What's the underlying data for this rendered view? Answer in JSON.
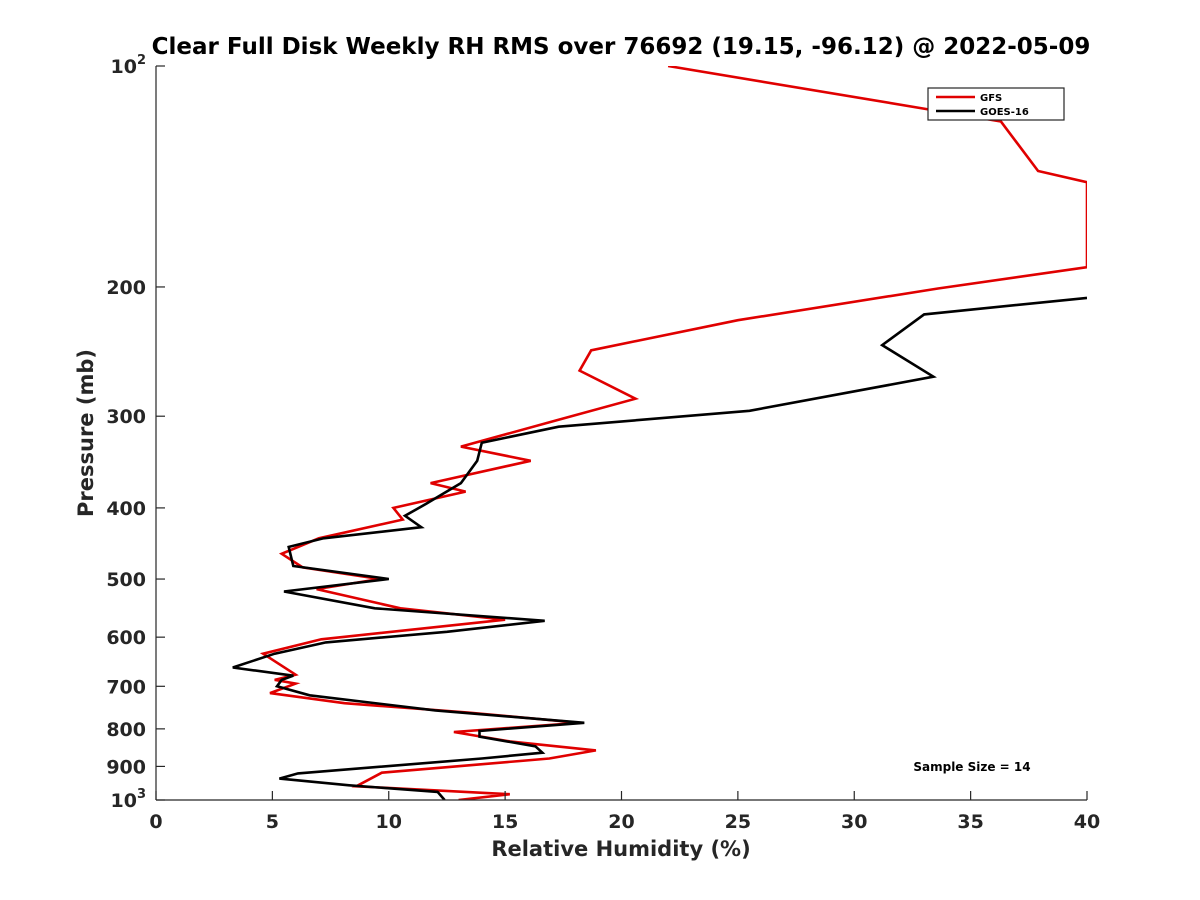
{
  "chart_data": {
    "type": "line",
    "title": "Clear Full Disk Weekly RH RMS over 76692 (19.15, -96.12) @ 2022-05-09",
    "xlabel": "Relative Humidity (%)",
    "ylabel": "Pressure (mb)",
    "xlim": [
      0,
      40
    ],
    "ylim": [
      100,
      1000
    ],
    "y_scale": "log",
    "y_reversed": true,
    "grid": false,
    "x_ticks": [
      "0",
      "5",
      "10",
      "15",
      "20",
      "25",
      "30",
      "35",
      "40"
    ],
    "y_ticks": [
      {
        "value": 100,
        "base": "10",
        "exp": "2"
      },
      {
        "value": 200,
        "base": "200",
        "exp": ""
      },
      {
        "value": 300,
        "base": "300",
        "exp": ""
      },
      {
        "value": 400,
        "base": "400",
        "exp": ""
      },
      {
        "value": 500,
        "base": "500",
        "exp": ""
      },
      {
        "value": 600,
        "base": "600",
        "exp": ""
      },
      {
        "value": 700,
        "base": "700",
        "exp": ""
      },
      {
        "value": 800,
        "base": "800",
        "exp": ""
      },
      {
        "value": 900,
        "base": "900",
        "exp": ""
      },
      {
        "value": 1000,
        "base": "10",
        "exp": "3"
      }
    ],
    "legend_position": "top-right",
    "annotation": "Sample Size = 14",
    "series": [
      {
        "name": "GFS",
        "color": "#e00000",
        "points": [
          [
            22.0,
            100
          ],
          [
            33.5,
            115
          ],
          [
            36.3,
            119
          ],
          [
            37.9,
            139
          ],
          [
            40.0,
            144
          ],
          [
            40.0,
            188
          ],
          [
            33.6,
            201
          ],
          [
            25.0,
            222
          ],
          [
            18.7,
            244
          ],
          [
            18.2,
            260
          ],
          [
            20.6,
            284
          ],
          [
            17.2,
            304
          ],
          [
            13.1,
            330
          ],
          [
            16.1,
            345
          ],
          [
            11.8,
            370
          ],
          [
            13.3,
            380
          ],
          [
            10.2,
            400
          ],
          [
            10.6,
            415
          ],
          [
            7.0,
            440
          ],
          [
            5.4,
            462
          ],
          [
            6.3,
            482
          ],
          [
            9.6,
            500
          ],
          [
            6.9,
            516
          ],
          [
            10.5,
            548
          ],
          [
            15.0,
            568
          ],
          [
            7.1,
            604
          ],
          [
            4.6,
            632
          ],
          [
            6.0,
            675
          ],
          [
            5.1,
            686
          ],
          [
            6.0,
            694
          ],
          [
            4.9,
            715
          ],
          [
            8.1,
            738
          ],
          [
            13.4,
            760
          ],
          [
            18.2,
            785
          ],
          [
            12.8,
            808
          ],
          [
            15.2,
            832
          ],
          [
            18.9,
            856
          ],
          [
            16.9,
            878
          ],
          [
            9.7,
            918
          ],
          [
            8.6,
            958
          ],
          [
            15.2,
            982
          ],
          [
            13.0,
            1000
          ]
        ]
      },
      {
        "name": "GOES-16",
        "color": "#000000",
        "points": [
          [
            40.0,
            207
          ],
          [
            33.0,
            218
          ],
          [
            31.2,
            240
          ],
          [
            33.4,
            265
          ],
          [
            25.5,
            295
          ],
          [
            17.3,
            310
          ],
          [
            14.0,
            326
          ],
          [
            13.8,
            345
          ],
          [
            13.1,
            370
          ],
          [
            11.6,
            395
          ],
          [
            10.7,
            410
          ],
          [
            11.4,
            425
          ],
          [
            7.2,
            440
          ],
          [
            5.7,
            452
          ],
          [
            5.9,
            480
          ],
          [
            10.0,
            500
          ],
          [
            5.5,
            520
          ],
          [
            9.4,
            548
          ],
          [
            16.7,
            570
          ],
          [
            12.5,
            590
          ],
          [
            7.3,
            610
          ],
          [
            5.1,
            632
          ],
          [
            3.3,
            660
          ],
          [
            5.9,
            677
          ],
          [
            5.4,
            686
          ],
          [
            5.2,
            700
          ],
          [
            6.6,
            720
          ],
          [
            12.0,
            755
          ],
          [
            18.4,
            785
          ],
          [
            13.9,
            805
          ],
          [
            13.9,
            820
          ],
          [
            16.3,
            845
          ],
          [
            16.6,
            862
          ],
          [
            14.0,
            878
          ],
          [
            6.1,
            920
          ],
          [
            5.3,
            935
          ],
          [
            8.3,
            955
          ],
          [
            12.1,
            975
          ],
          [
            12.4,
            1000
          ]
        ]
      }
    ]
  }
}
